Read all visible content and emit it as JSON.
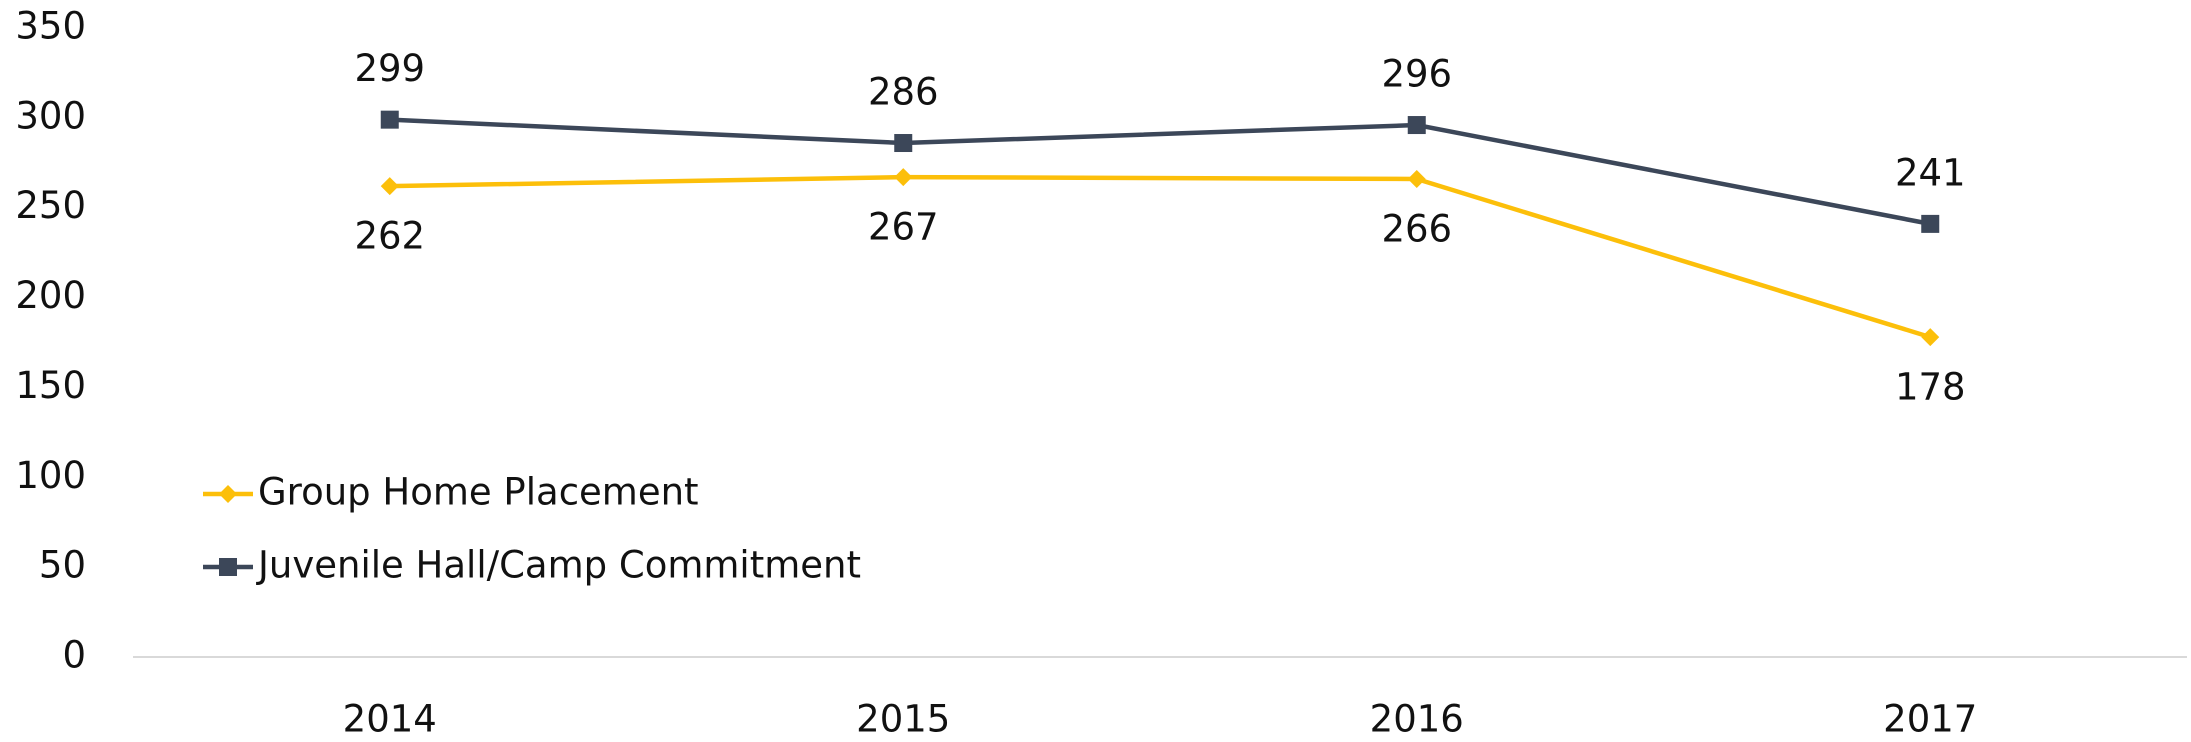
{
  "chart_data": {
    "type": "line",
    "categories": [
      "2014",
      "2015",
      "2016",
      "2017"
    ],
    "series": [
      {
        "name": "Group Home Placement",
        "color": "#fcbf0a",
        "marker": "diamond",
        "values": [
          262,
          267,
          266,
          178
        ]
      },
      {
        "name": "Juvenile Hall/Camp Commitment",
        "color": "#3c4759",
        "marker": "square",
        "values": [
          299,
          286,
          296,
          241
        ]
      }
    ],
    "ylim": [
      0,
      350
    ],
    "yticks": [
      0,
      50,
      100,
      150,
      200,
      250,
      300,
      350
    ],
    "grid": false,
    "legend": "lower left"
  }
}
